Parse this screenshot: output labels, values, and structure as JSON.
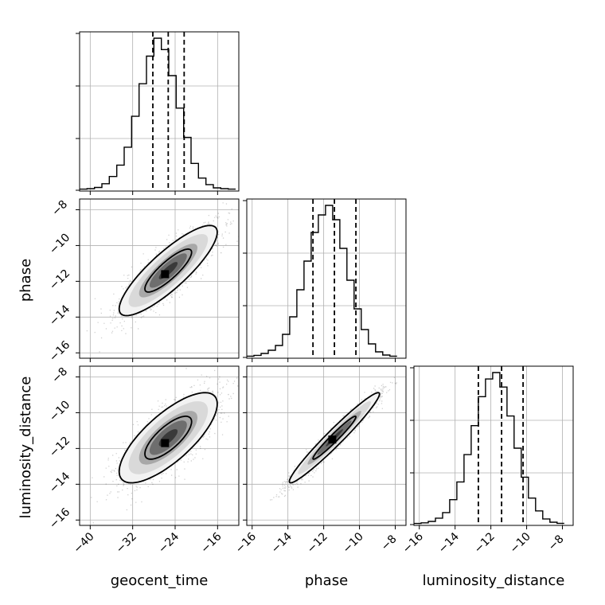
{
  "chart_data": {
    "type": "corner",
    "title": "",
    "parameters": [
      "geocent_time",
      "phase",
      "luminosity_distance"
    ],
    "axis_labels": {
      "geocent_time": "geocent_time",
      "phase": "phase",
      "luminosity_distance": "luminosity_distance"
    },
    "ranges": {
      "geocent_time": [
        -42,
        -12
      ],
      "phase": [
        -16.3,
        -7.4
      ],
      "luminosity_distance": [
        -16.3,
        -7.4
      ]
    },
    "ticks": {
      "geocent_time": [
        -40,
        -32,
        -24,
        -16
      ],
      "phase": [
        -16,
        -14,
        -12,
        -10,
        -8
      ],
      "luminosity_distance": [
        -16,
        -14,
        -12,
        -10,
        -8
      ]
    },
    "tick_labels": {
      "geocent_time": [
        "−40",
        "−32",
        "−24",
        "−16"
      ],
      "phase": [
        "−16",
        "−14",
        "−12",
        "−10",
        "−8"
      ],
      "luminosity_distance": [
        "−16",
        "−14",
        "−12",
        "−10",
        "−8"
      ]
    },
    "quantiles": {
      "geocent_time": [
        -28.2,
        -25.3,
        -22.3
      ],
      "phase": [
        -12.6,
        -11.4,
        -10.2
      ],
      "luminosity_distance": [
        -12.7,
        -11.4,
        -10.2
      ]
    },
    "histograms": {
      "geocent_time": {
        "edges": [
          -42,
          -40.6,
          -39.2,
          -37.8,
          -36.4,
          -35,
          -33.6,
          -32.2,
          -30.8,
          -29.4,
          -28,
          -26.6,
          -25.2,
          -23.8,
          -22.4,
          -21,
          -19.6,
          -18.2,
          -16.8,
          -15.4,
          -14,
          -12.6
        ],
        "counts": [
          0.2,
          0.5,
          1.2,
          3.5,
          8,
          15,
          26,
          45,
          65,
          82,
          93,
          86,
          70,
          50,
          32,
          16,
          7,
          3,
          1,
          0.5,
          0.2
        ]
      },
      "phase": {
        "edges": [
          -16.3,
          -15.9,
          -15.5,
          -15.1,
          -14.7,
          -14.3,
          -13.9,
          -13.5,
          -13.1,
          -12.7,
          -12.3,
          -11.9,
          -11.5,
          -11.1,
          -10.7,
          -10.3,
          -9.9,
          -9.5,
          -9.1,
          -8.7,
          -8.3,
          -7.9
        ],
        "counts": [
          0.3,
          0.8,
          2,
          4,
          7,
          14,
          25,
          42,
          60,
          78,
          89,
          95,
          86,
          68,
          48,
          30,
          17,
          8,
          3,
          1,
          0.3
        ]
      },
      "luminosity_distance": {
        "edges": [
          -16.3,
          -15.9,
          -15.5,
          -15.1,
          -14.7,
          -14.3,
          -13.9,
          -13.5,
          -13.1,
          -12.7,
          -12.3,
          -11.9,
          -11.5,
          -11.1,
          -10.7,
          -10.3,
          -9.9,
          -9.5,
          -9.1,
          -8.7,
          -8.3,
          -7.9
        ],
        "counts": [
          0.2,
          0.6,
          1.5,
          3.5,
          7,
          15,
          26,
          43,
          61,
          79,
          90,
          94,
          85,
          67,
          47,
          29,
          16,
          8,
          3,
          1,
          0.3
        ]
      }
    },
    "pairs": [
      {
        "x": "geocent_time",
        "y": "phase",
        "center": [
          -25.3,
          -11.4
        ],
        "sigma": [
          4.4,
          1.2
        ],
        "rho": 0.85,
        "max_peak": -11.6
      },
      {
        "x": "geocent_time",
        "y": "luminosity_distance",
        "center": [
          -25.3,
          -11.4
        ],
        "sigma": [
          4.4,
          1.2
        ],
        "rho": 0.75,
        "max_peak": -11.7
      },
      {
        "x": "phase",
        "y": "luminosity_distance",
        "center": [
          -11.4,
          -11.4
        ],
        "sigma": [
          1.2,
          1.2
        ],
        "rho": 0.97,
        "max_peak": -11.5
      }
    ],
    "grid": true
  }
}
